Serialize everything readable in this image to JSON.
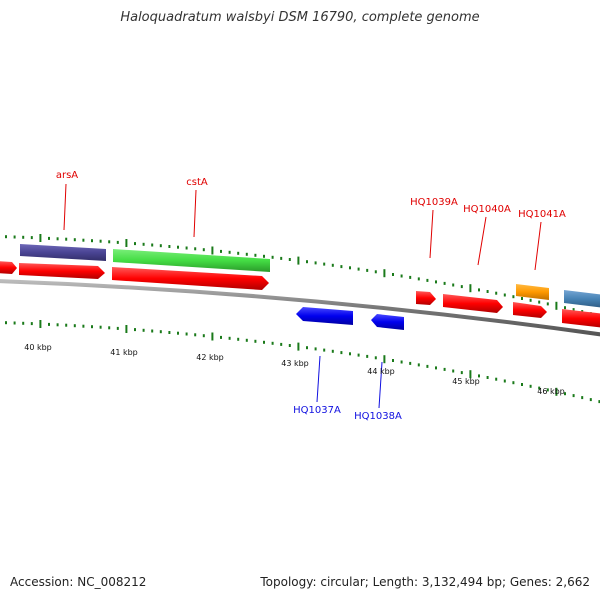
{
  "header": {
    "title": "Haloquadratum walsbyi DSM 16790, complete genome"
  },
  "footer": {
    "accession": "Accession: NC_008212",
    "stats": "Topology: circular; Length: 3,132,494 bp; Genes: 2,662"
  },
  "map": {
    "kbp_ticks": [
      "40 kbp",
      "41 kbp",
      "42 kbp",
      "43 kbp",
      "44 kbp",
      "45 kbp",
      "46 kbp"
    ],
    "forward_genes": [
      {
        "label": "arsA",
        "color": "#e00000"
      },
      {
        "label": "cstA",
        "color": "#e00000"
      },
      {
        "label": "HQ1039A",
        "color": "#e00000"
      },
      {
        "label": "HQ1040A",
        "color": "#e00000"
      },
      {
        "label": "HQ1041A",
        "color": "#e00000"
      }
    ],
    "reverse_genes": [
      {
        "label": "HQ1037A",
        "color": "#1010e0"
      },
      {
        "label": "HQ1038A",
        "color": "#1010e0"
      }
    ],
    "colors": {
      "cds": "#ff0000",
      "reverse_cds": "#0000ee",
      "backbone": "#888888",
      "tick": "#1a7a1a",
      "cog_purple": "#4a4494",
      "cog_green": "#44dd44",
      "cog_orange": "#ff9900",
      "cog_steelblue": "#4682b4"
    }
  }
}
